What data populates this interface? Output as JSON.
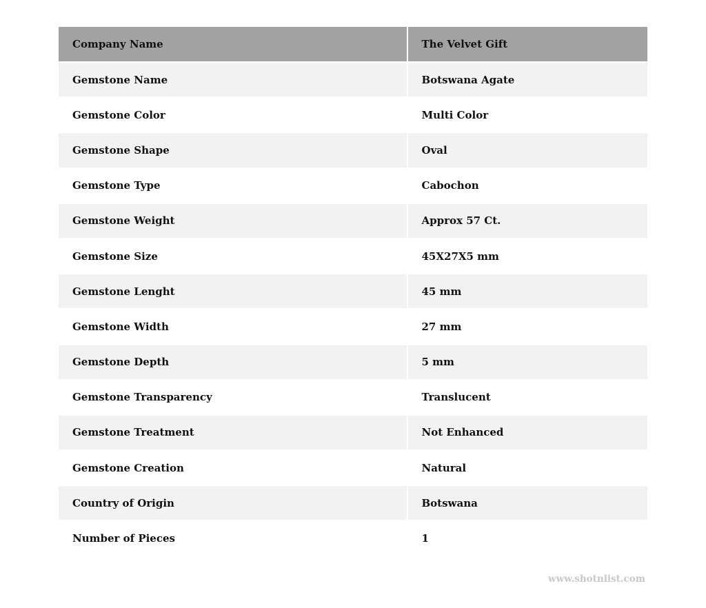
{
  "header": {
    "label": "Company Name",
    "value": "The Velvet Gift"
  },
  "rows": [
    {
      "label": "Gemstone Name",
      "value": "Botswana Agate"
    },
    {
      "label": "Gemstone Color",
      "value": "Multi Color"
    },
    {
      "label": "Gemstone Shape",
      "value": "Oval"
    },
    {
      "label": "Gemstone Type",
      "value": "Cabochon"
    },
    {
      "label": "Gemstone Weight",
      "value": "Approx 57 Ct."
    },
    {
      "label": "Gemstone Size",
      "value": "45X27X5 mm"
    },
    {
      "label": "Gemstone Lenght",
      "value": "45 mm"
    },
    {
      "label": "Gemstone Width",
      "value": "27 mm"
    },
    {
      "label": "Gemstone Depth",
      "value": "5 mm"
    },
    {
      "label": "Gemstone Transparency",
      "value": "Translucent"
    },
    {
      "label": "Gemstone Treatment",
      "value": "Not Enhanced"
    },
    {
      "label": "Gemstone Creation",
      "value": "Natural"
    },
    {
      "label": "Country of Origin",
      "value": "Botswana"
    },
    {
      "label": "Number of Pieces",
      "value": "1"
    }
  ],
  "watermark": "www.shotnlist.com",
  "colors": {
    "header_bg": "#a2a2a2",
    "stripe_bg": "#f2f2f2"
  }
}
